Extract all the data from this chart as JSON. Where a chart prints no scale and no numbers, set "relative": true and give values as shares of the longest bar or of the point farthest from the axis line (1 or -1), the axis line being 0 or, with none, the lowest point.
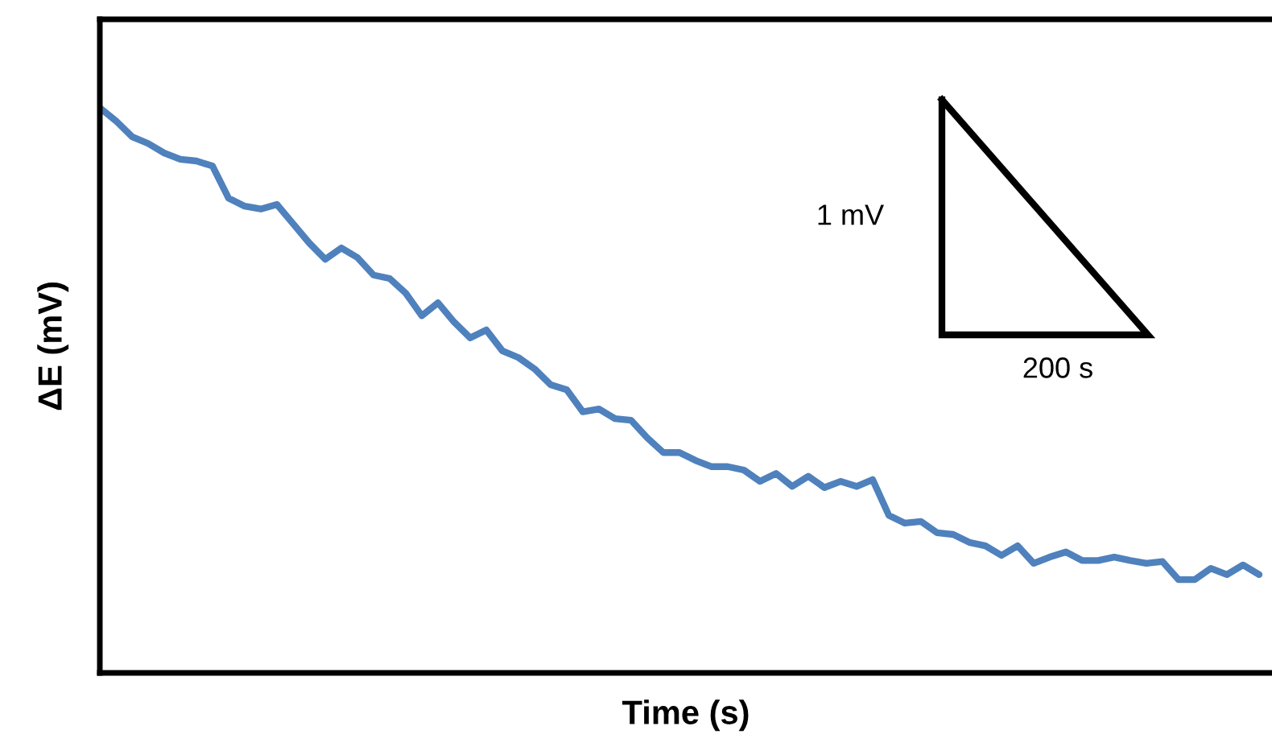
{
  "chart_data": {
    "type": "line",
    "relative": true,
    "xlabel": "Time (s)",
    "ylabel": "ΔE (mV)",
    "categories": [
      null,
      null,
      null,
      null,
      null,
      null,
      null,
      null,
      null,
      null,
      null,
      null,
      null,
      null,
      null,
      null,
      null,
      null,
      null,
      null,
      null,
      null,
      null,
      null,
      null,
      null,
      null,
      null,
      null,
      null,
      null,
      null,
      null,
      null,
      null,
      null,
      null,
      null,
      null,
      null,
      null,
      null,
      null,
      null,
      null,
      null,
      null,
      null,
      null,
      null,
      null,
      null,
      null,
      null,
      null,
      null,
      null,
      null,
      null,
      null,
      null,
      null,
      null,
      null,
      null,
      null,
      null,
      null,
      null,
      null,
      null,
      null,
      null
    ],
    "series": [
      {
        "color": "#4f81bd",
        "values": [
          1.0,
          0.977,
          0.949,
          0.937,
          0.92,
          0.909,
          0.906,
          0.897,
          0.84,
          0.826,
          0.821,
          0.829,
          0.795,
          0.761,
          0.732,
          0.752,
          0.735,
          0.704,
          0.698,
          0.672,
          0.632,
          0.655,
          0.621,
          0.593,
          0.607,
          0.57,
          0.558,
          0.538,
          0.51,
          0.501,
          0.462,
          0.467,
          0.45,
          0.447,
          0.416,
          0.39,
          0.39,
          0.376,
          0.365,
          0.365,
          0.359,
          0.339,
          0.353,
          0.33,
          0.348,
          0.328,
          0.339,
          0.33,
          0.342,
          0.279,
          0.265,
          0.268,
          0.248,
          0.245,
          0.231,
          0.225,
          0.208,
          0.225,
          0.194,
          0.205,
          0.214,
          0.199,
          0.199,
          0.205,
          0.199,
          0.194,
          0.197,
          0.165,
          0.165,
          0.185,
          0.174,
          0.191,
          0.174
        ]
      }
    ],
    "annotations": [
      "1 mV",
      "200 s"
    ],
    "legend": false,
    "tick_labels": false,
    "marker": "none",
    "line_style": "solid"
  }
}
